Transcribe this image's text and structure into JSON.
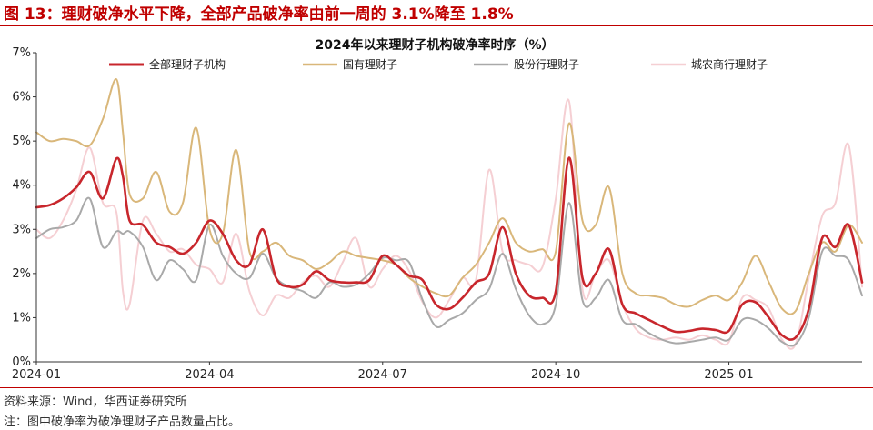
{
  "header": {
    "figure_title": "图 13：理财破净水平下降，全部产品破净率由前一周的 3.1%降至 1.8%"
  },
  "footer": {
    "source": "资料来源：Wind，华西证券研究所",
    "note": "注：图中破净率为破净理财子产品数量占比。"
  },
  "colors": {
    "accent": "#c00000",
    "all": "#c8262c",
    "state": "#d9b77a",
    "joint": "#a9a9a9",
    "rural": "#f5cfd3"
  },
  "chart_data": {
    "type": "line",
    "title": "2024年以来理财子机构破净率时序（%）",
    "xlabel": "",
    "ylabel": "",
    "ylim": [
      0,
      7
    ],
    "yticks": [
      0,
      1,
      2,
      3,
      4,
      5,
      6,
      7
    ],
    "ytick_labels": [
      "0%",
      "1%",
      "2%",
      "3%",
      "4%",
      "5%",
      "6%",
      "7%"
    ],
    "xlim": [
      0,
      62
    ],
    "xticks": [
      0,
      13,
      26,
      39,
      52
    ],
    "xtick_labels": [
      "2024-01",
      "2024-04",
      "2024-07",
      "2024-10",
      "2025-01"
    ],
    "grid": false,
    "legend": "top",
    "series": [
      {
        "key": "all",
        "name": "全部理财子机构",
        "x": [
          0,
          1,
          2,
          3,
          4,
          5,
          6,
          6.5,
          7,
          8,
          9,
          10,
          11,
          12,
          13,
          14,
          15,
          16,
          17,
          18,
          19,
          20,
          21,
          22,
          23,
          24,
          25,
          26,
          27,
          28,
          29,
          30,
          31,
          32,
          33,
          34,
          35,
          36,
          37,
          38,
          39,
          40,
          41,
          42,
          43,
          44,
          45,
          46,
          47,
          48,
          49,
          50,
          51,
          52,
          53,
          54,
          55,
          56,
          57,
          58,
          59,
          60,
          61,
          62
        ],
        "values": [
          3.5,
          3.55,
          3.7,
          3.95,
          4.3,
          3.7,
          4.6,
          4.2,
          3.2,
          3.1,
          2.7,
          2.6,
          2.45,
          2.7,
          3.2,
          2.9,
          2.3,
          2.2,
          3.0,
          1.9,
          1.7,
          1.75,
          2.05,
          1.85,
          1.8,
          1.8,
          1.85,
          2.4,
          2.2,
          1.95,
          1.85,
          1.3,
          1.2,
          1.45,
          1.8,
          2.0,
          3.05,
          2.0,
          1.5,
          1.45,
          1.6,
          4.62,
          1.9,
          2.0,
          2.55,
          1.3,
          1.1,
          0.95,
          0.8,
          0.68,
          0.7,
          0.75,
          0.72,
          0.7,
          1.3,
          1.35,
          1.0,
          0.6,
          0.55,
          1.2,
          2.8,
          2.6,
          3.1,
          1.8
        ]
      },
      {
        "key": "state",
        "name": "国有理财子",
        "x": [
          0,
          1,
          2,
          3,
          4,
          5,
          6,
          6.5,
          7,
          8,
          9,
          10,
          11,
          12,
          13,
          14,
          15,
          16,
          17,
          18,
          19,
          20,
          21,
          22,
          23,
          24,
          25,
          26,
          27,
          28,
          29,
          30,
          31,
          32,
          33,
          34,
          35,
          36,
          37,
          38,
          39,
          40,
          41,
          42,
          43,
          44,
          45,
          46,
          47,
          48,
          49,
          50,
          51,
          52,
          53,
          54,
          55,
          56,
          57,
          58,
          59,
          60,
          61,
          62
        ],
        "values": [
          5.2,
          5.0,
          5.05,
          5.0,
          4.9,
          5.5,
          6.4,
          5.2,
          3.8,
          3.7,
          4.3,
          3.4,
          3.6,
          5.3,
          3.0,
          2.9,
          4.8,
          2.5,
          2.5,
          2.7,
          2.4,
          2.3,
          2.1,
          2.25,
          2.5,
          2.4,
          2.35,
          2.3,
          2.2,
          1.9,
          1.7,
          1.55,
          1.5,
          1.9,
          2.2,
          2.7,
          3.25,
          2.7,
          2.5,
          2.55,
          2.5,
          5.4,
          3.2,
          3.1,
          3.95,
          2.0,
          1.55,
          1.5,
          1.45,
          1.3,
          1.25,
          1.4,
          1.5,
          1.4,
          1.8,
          2.4,
          1.8,
          1.2,
          1.15,
          2.0,
          2.7,
          2.5,
          3.1,
          2.7
        ]
      },
      {
        "key": "joint",
        "name": "股份行理财子",
        "x": [
          0,
          1,
          2,
          3,
          4,
          5,
          6,
          6.5,
          7,
          8,
          9,
          10,
          11,
          12,
          13,
          14,
          15,
          16,
          17,
          18,
          19,
          20,
          21,
          22,
          23,
          24,
          25,
          26,
          27,
          28,
          29,
          30,
          31,
          32,
          33,
          34,
          35,
          36,
          37,
          38,
          39,
          40,
          41,
          42,
          43,
          44,
          45,
          46,
          47,
          48,
          49,
          50,
          51,
          52,
          53,
          54,
          55,
          56,
          57,
          58,
          59,
          60,
          61,
          62
        ],
        "values": [
          2.8,
          3.0,
          3.05,
          3.2,
          3.7,
          2.6,
          2.95,
          2.9,
          2.95,
          2.6,
          1.85,
          2.3,
          2.1,
          1.85,
          3.1,
          2.4,
          2.0,
          1.9,
          2.45,
          1.9,
          1.7,
          1.6,
          1.45,
          1.8,
          1.7,
          1.75,
          2.0,
          2.35,
          2.3,
          2.25,
          1.4,
          0.8,
          0.95,
          1.1,
          1.4,
          1.65,
          2.45,
          1.65,
          1.05,
          0.85,
          1.3,
          3.6,
          1.4,
          1.45,
          1.85,
          0.95,
          0.85,
          0.65,
          0.5,
          0.42,
          0.45,
          0.5,
          0.55,
          0.5,
          0.95,
          0.95,
          0.75,
          0.45,
          0.4,
          1.0,
          2.5,
          2.4,
          2.3,
          1.5
        ]
      },
      {
        "key": "rural",
        "name": "城农商行理财子",
        "x": [
          0,
          1,
          2,
          3,
          4,
          5,
          6,
          6.5,
          7,
          8,
          9,
          10,
          11,
          12,
          13,
          14,
          15,
          16,
          17,
          18,
          19,
          20,
          21,
          22,
          23,
          24,
          25,
          26,
          27,
          28,
          29,
          30,
          31,
          32,
          33,
          34,
          35,
          36,
          37,
          38,
          39,
          40,
          41,
          42,
          43,
          44,
          45,
          46,
          47,
          48,
          49,
          50,
          51,
          52,
          53,
          54,
          55,
          56,
          57,
          58,
          59,
          60,
          61,
          62
        ],
        "values": [
          3.0,
          2.8,
          3.2,
          3.9,
          4.85,
          3.6,
          3.4,
          1.6,
          1.3,
          3.2,
          2.9,
          2.5,
          2.55,
          2.2,
          2.1,
          1.8,
          2.9,
          1.6,
          1.05,
          1.5,
          1.45,
          1.8,
          1.95,
          1.7,
          2.25,
          2.8,
          1.7,
          2.1,
          2.4,
          2.05,
          1.35,
          1.0,
          1.4,
          1.9,
          1.85,
          4.35,
          2.5,
          2.3,
          2.2,
          2.15,
          3.7,
          5.9,
          1.65,
          2.0,
          2.3,
          1.3,
          0.75,
          0.55,
          0.5,
          0.55,
          0.5,
          0.6,
          0.5,
          0.45,
          1.45,
          1.4,
          1.2,
          0.5,
          0.4,
          1.9,
          3.3,
          3.6,
          4.9,
          1.7
        ]
      }
    ]
  }
}
